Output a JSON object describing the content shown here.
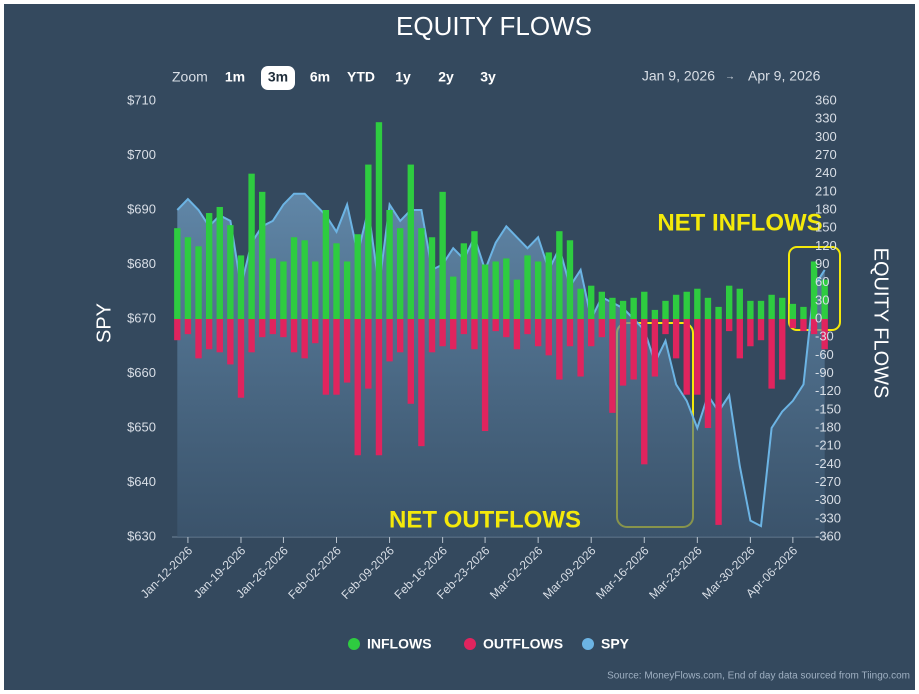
{
  "toolbar": {
    "zoom_label": "Zoom",
    "buttons": [
      "1m",
      "3m",
      "6m",
      "YTD",
      "1y",
      "2y",
      "3y"
    ],
    "selected": 1,
    "range_start": "Jan 9, 2026",
    "range_arrow": "→",
    "range_end": "Apr 9, 2026"
  },
  "chart_data": {
    "type": "bar",
    "title": "EQUITY FLOWS",
    "ylabel": "SPY",
    "y2label": "EQUITY FLOWS",
    "source": "Source: MoneyFlows.com, End of day data sourced from Tiingo.com",
    "grid": false,
    "legend": "bottom",
    "x": [
      "2026-01-09",
      "2026-01-12",
      "2026-01-13",
      "2026-01-14",
      "2026-01-15",
      "2026-01-16",
      "2026-01-20",
      "2026-01-21",
      "2026-01-22",
      "2026-01-23",
      "2026-01-26",
      "2026-01-27",
      "2026-01-28",
      "2026-01-29",
      "2026-01-30",
      "2026-02-02",
      "2026-02-03",
      "2026-02-04",
      "2026-02-05",
      "2026-02-06",
      "2026-02-09",
      "2026-02-10",
      "2026-02-11",
      "2026-02-12",
      "2026-02-13",
      "2026-02-17",
      "2026-02-18",
      "2026-02-19",
      "2026-02-20",
      "2026-02-23",
      "2026-02-24",
      "2026-02-25",
      "2026-02-26",
      "2026-02-27",
      "2026-03-02",
      "2026-03-03",
      "2026-03-04",
      "2026-03-05",
      "2026-03-06",
      "2026-03-09",
      "2026-03-10",
      "2026-03-11",
      "2026-03-12",
      "2026-03-13",
      "2026-03-16",
      "2026-03-17",
      "2026-03-18",
      "2026-03-19",
      "2026-03-20",
      "2026-03-23",
      "2026-03-24",
      "2026-03-25",
      "2026-03-26",
      "2026-03-27",
      "2026-03-30",
      "2026-03-31",
      "2026-04-01",
      "2026-04-02",
      "2026-04-06",
      "2026-04-07",
      "2026-04-08",
      "2026-04-09"
    ],
    "xticks": [
      {
        "value": "2026-01-12",
        "label": "Jan-12-2026"
      },
      {
        "value": "2026-01-19",
        "label": "Jan-19-2026"
      },
      {
        "value": "2026-01-26",
        "label": "Jan-26-2026"
      },
      {
        "value": "2026-02-02",
        "label": "Feb-02-2026"
      },
      {
        "value": "2026-02-09",
        "label": "Feb-09-2026"
      },
      {
        "value": "2026-02-16",
        "label": "Feb-16-2026"
      },
      {
        "value": "2026-02-23",
        "label": "Feb-23-2026"
      },
      {
        "value": "2026-03-02",
        "label": "Mar-02-2026"
      },
      {
        "value": "2026-03-09",
        "label": "Mar-09-2026"
      },
      {
        "value": "2026-03-16",
        "label": "Mar-16-2026"
      },
      {
        "value": "2026-03-23",
        "label": "Mar-23-2026"
      },
      {
        "value": "2026-03-30",
        "label": "Mar-30-2026"
      },
      {
        "value": "2026-04-06",
        "label": "Apr-06-2026"
      }
    ],
    "ylim": [
      630,
      710
    ],
    "yticks": [
      {
        "value": 630,
        "label": "$630"
      },
      {
        "value": 640,
        "label": "$640"
      },
      {
        "value": 650,
        "label": "$650"
      },
      {
        "value": 660,
        "label": "$660"
      },
      {
        "value": 670,
        "label": "$670"
      },
      {
        "value": 680,
        "label": "$680"
      },
      {
        "value": 690,
        "label": "$690"
      },
      {
        "value": 700,
        "label": "$700"
      },
      {
        "value": 710,
        "label": "$710"
      }
    ],
    "y2lim": [
      -360,
      360
    ],
    "y2ticks": [
      -360,
      -330,
      -300,
      -270,
      -240,
      -210,
      -180,
      -150,
      -120,
      -90,
      -60,
      -30,
      0,
      30,
      60,
      90,
      120,
      150,
      180,
      210,
      240,
      270,
      300,
      330,
      360
    ],
    "series": [
      {
        "name": "SPY",
        "type": "area",
        "color": "#6cb4e4",
        "axis": "y",
        "values": [
          690,
          692,
          690,
          687,
          689,
          688,
          676,
          684,
          687,
          688,
          691,
          693,
          693,
          691,
          689,
          686,
          691,
          682,
          690,
          676,
          691,
          688,
          690,
          690,
          679,
          680,
          683,
          681,
          685,
          679,
          684,
          687,
          685,
          683,
          685,
          679,
          683,
          676,
          679,
          670,
          674,
          673,
          672,
          670,
          668,
          662,
          666,
          658,
          655,
          650,
          656,
          653,
          656,
          643,
          633,
          632,
          650,
          653,
          655,
          658,
          676,
          679
        ]
      },
      {
        "name": "INFLOWS",
        "type": "bar",
        "color": "#2ecc40",
        "axis": "y2",
        "values": [
          150,
          135,
          120,
          175,
          185,
          155,
          105,
          240,
          210,
          100,
          95,
          135,
          130,
          95,
          180,
          125,
          95,
          140,
          255,
          325,
          180,
          150,
          255,
          150,
          135,
          210,
          70,
          125,
          145,
          90,
          95,
          100,
          65,
          105,
          95,
          110,
          145,
          130,
          50,
          55,
          45,
          35,
          30,
          35,
          45,
          15,
          30,
          40,
          45,
          50,
          35,
          20,
          55,
          50,
          30,
          30,
          40,
          35,
          25,
          20,
          95,
          65
        ]
      },
      {
        "name": "OUTFLOWS",
        "type": "bar",
        "color": "#e0245e",
        "axis": "y2",
        "values": [
          -35,
          -25,
          -65,
          -50,
          -55,
          -75,
          -130,
          -55,
          -30,
          -25,
          -30,
          -55,
          -65,
          -40,
          -125,
          -125,
          -105,
          -225,
          -115,
          -225,
          -70,
          -55,
          -140,
          -210,
          -55,
          -45,
          -50,
          -25,
          -50,
          -185,
          -20,
          -30,
          -50,
          -25,
          -45,
          -60,
          -100,
          -45,
          -95,
          -45,
          -30,
          -155,
          -110,
          -100,
          -240,
          -95,
          -25,
          -65,
          -125,
          -125,
          -180,
          -340,
          -20,
          -65,
          -45,
          -35,
          -115,
          -100,
          -15,
          -20,
          -25,
          -50
        ]
      }
    ],
    "annotations": [
      {
        "text": "NET INFLOWS"
      },
      {
        "text": "NET OUTFLOWS"
      }
    ]
  }
}
